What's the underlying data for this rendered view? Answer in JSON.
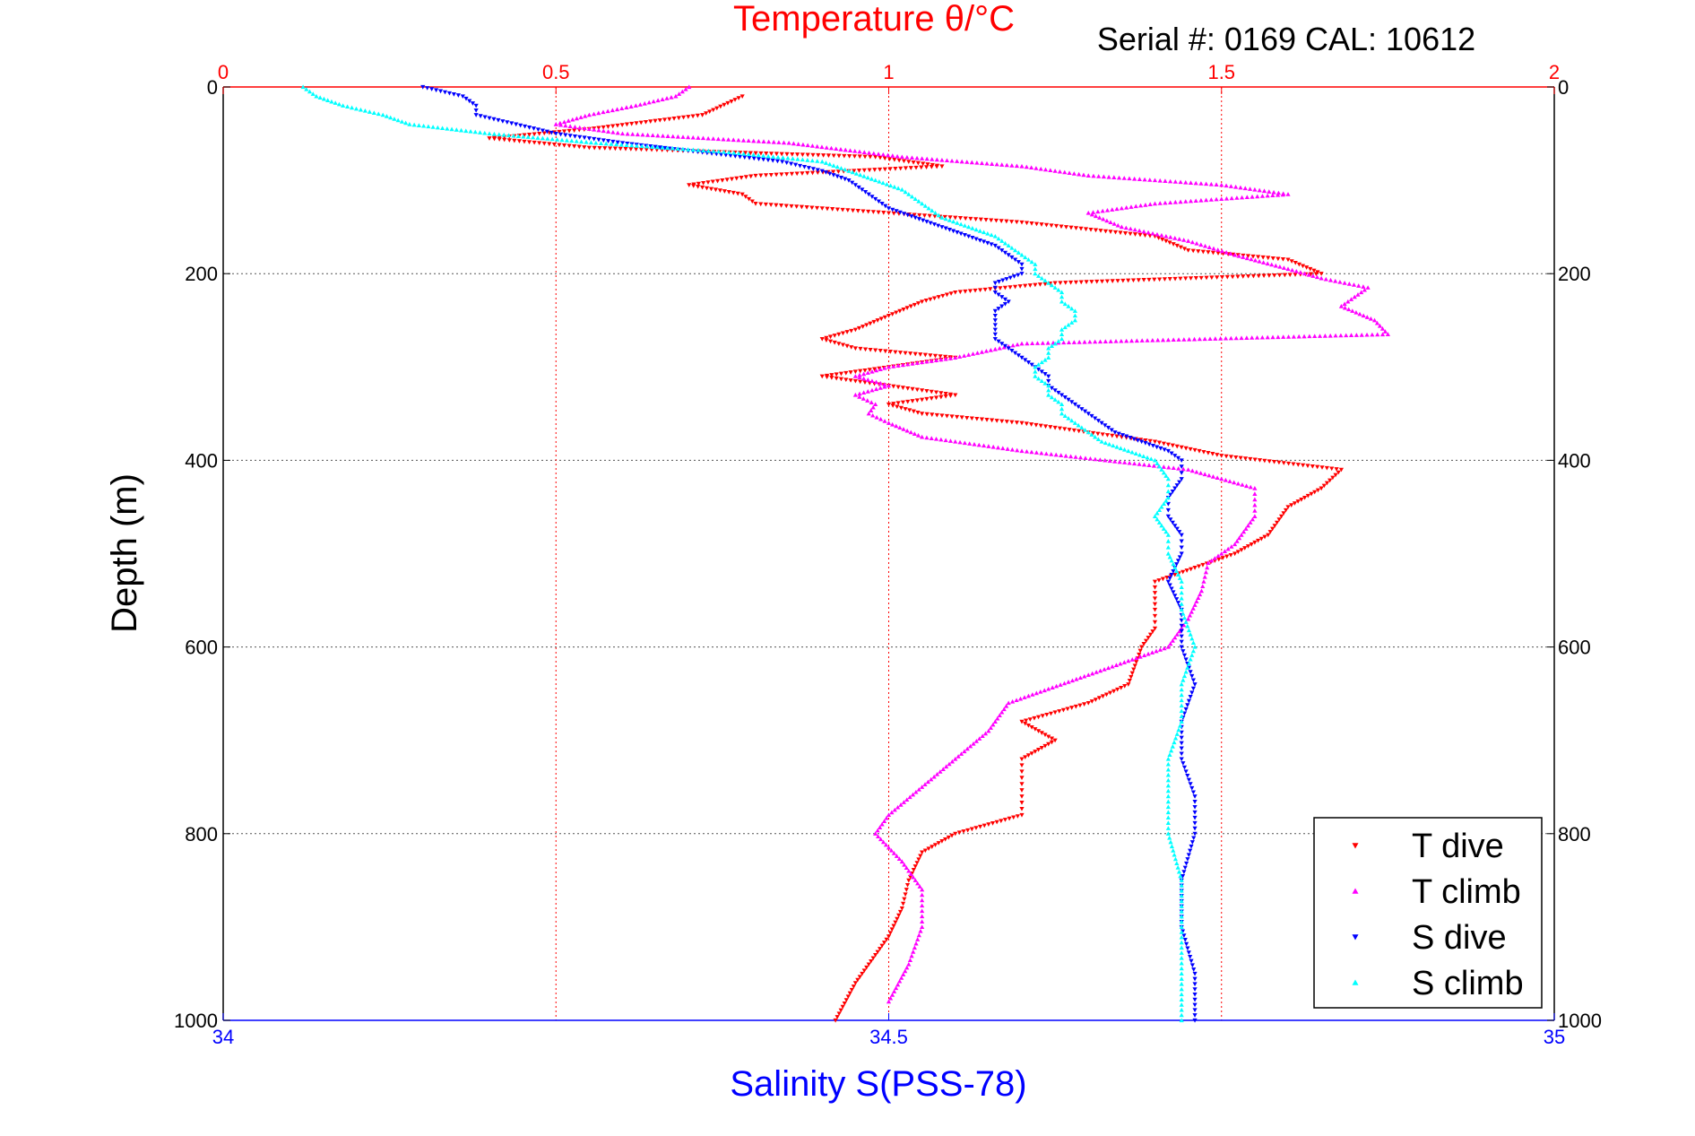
{
  "chart_data": {
    "type": "scatter",
    "title": "Temperature θ/°C",
    "subtitle": "Serial #: 0169 CAL: 10612",
    "ylabel": "Depth (m)",
    "xlabel": "Salinity S(PSS-78)",
    "grid": true,
    "legend_position": "bottom-right",
    "y_axis": {
      "range": [
        0,
        1000
      ],
      "ticks": [
        0,
        200,
        400,
        600,
        800,
        1000
      ],
      "inverted": true
    },
    "x_axis_top": {
      "quantity": "temperature",
      "range": [
        0,
        2
      ],
      "ticks": [
        0,
        0.5,
        1,
        1.5,
        2
      ],
      "tick_labels": [
        "0",
        "0.5",
        "1",
        "1.5",
        "2"
      ],
      "color": "#ff0000"
    },
    "x_axis_bottom": {
      "quantity": "salinity",
      "range": [
        34,
        35
      ],
      "ticks": [
        34,
        34.5,
        35
      ],
      "tick_labels": [
        "34",
        "34.5",
        "35"
      ],
      "color": "#0000ff"
    },
    "colors": {
      "temperature": "#ff0000",
      "salinity": "#0000ff",
      "frame": "#000000",
      "grid": "#555555"
    },
    "series": [
      {
        "name": "T dive",
        "axis": "temperature",
        "color": "#ff0000",
        "marker": "triangle-down",
        "depth": [
          10,
          30,
          45,
          55,
          65,
          75,
          85,
          95,
          105,
          115,
          125,
          135,
          145,
          160,
          175,
          185,
          200,
          210,
          220,
          230,
          245,
          260,
          270,
          280,
          290,
          300,
          310,
          320,
          330,
          340,
          350,
          360,
          380,
          395,
          410,
          430,
          450,
          480,
          500,
          530,
          560,
          580,
          600,
          620,
          640,
          660,
          680,
          700,
          720,
          740,
          760,
          780,
          800,
          820,
          850,
          880,
          910,
          930,
          960,
          1000
        ],
        "values": [
          0.78,
          0.72,
          0.55,
          0.4,
          0.55,
          0.98,
          1.08,
          0.8,
          0.7,
          0.78,
          0.8,
          1.0,
          1.2,
          1.4,
          1.45,
          1.6,
          1.65,
          1.25,
          1.1,
          1.05,
          1.0,
          0.95,
          0.9,
          0.95,
          1.1,
          1.0,
          0.9,
          1.0,
          1.1,
          1.0,
          1.05,
          1.2,
          1.4,
          1.5,
          1.68,
          1.65,
          1.6,
          1.57,
          1.52,
          1.4,
          1.4,
          1.4,
          1.38,
          1.37,
          1.36,
          1.3,
          1.2,
          1.25,
          1.2,
          1.2,
          1.2,
          1.2,
          1.1,
          1.05,
          1.03,
          1.02,
          1.0,
          0.98,
          0.95,
          0.92
        ]
      },
      {
        "name": "T climb",
        "axis": "temperature",
        "color": "#ff00ff",
        "marker": "triangle-up",
        "depth": [
          0,
          10,
          20,
          30,
          40,
          50,
          60,
          75,
          85,
          95,
          105,
          115,
          125,
          135,
          150,
          165,
          180,
          195,
          205,
          215,
          225,
          235,
          250,
          265,
          275,
          290,
          300,
          310,
          320,
          330,
          340,
          350,
          360,
          375,
          390,
          410,
          430,
          460,
          490,
          510,
          540,
          570,
          600,
          630,
          660,
          690,
          720,
          750,
          780,
          800,
          830,
          860,
          900,
          940,
          980
        ],
        "values": [
          0.7,
          0.68,
          0.62,
          0.55,
          0.5,
          0.6,
          0.85,
          1.02,
          1.2,
          1.3,
          1.5,
          1.6,
          1.4,
          1.3,
          1.35,
          1.45,
          1.52,
          1.6,
          1.65,
          1.72,
          1.7,
          1.68,
          1.73,
          1.75,
          1.2,
          1.1,
          1.0,
          0.95,
          1.0,
          0.95,
          0.98,
          0.97,
          1.0,
          1.05,
          1.2,
          1.45,
          1.55,
          1.55,
          1.52,
          1.48,
          1.47,
          1.45,
          1.42,
          1.3,
          1.18,
          1.15,
          1.1,
          1.05,
          1.0,
          0.98,
          1.02,
          1.05,
          1.05,
          1.03,
          1.0
        ]
      },
      {
        "name": "S dive",
        "axis": "salinity",
        "color": "#0000ff",
        "marker": "triangle-down",
        "depth": [
          0,
          10,
          20,
          30,
          40,
          50,
          60,
          70,
          80,
          90,
          100,
          110,
          120,
          130,
          140,
          150,
          160,
          170,
          180,
          190,
          200,
          210,
          220,
          230,
          240,
          250,
          260,
          270,
          280,
          290,
          300,
          310,
          320,
          330,
          340,
          350,
          360,
          370,
          380,
          390,
          400,
          420,
          440,
          460,
          480,
          500,
          530,
          560,
          600,
          640,
          680,
          720,
          760,
          800,
          850,
          900,
          950,
          1000
        ],
        "values": [
          34.15,
          34.18,
          34.19,
          34.19,
          34.22,
          34.25,
          34.3,
          34.36,
          34.42,
          34.45,
          34.47,
          34.48,
          34.49,
          34.5,
          34.52,
          34.54,
          34.56,
          34.58,
          34.59,
          34.6,
          34.6,
          34.58,
          34.58,
          34.59,
          34.58,
          34.58,
          34.58,
          34.58,
          34.59,
          34.6,
          34.61,
          34.62,
          34.62,
          34.63,
          34.64,
          34.65,
          34.66,
          34.67,
          34.69,
          34.71,
          34.72,
          34.72,
          34.71,
          34.71,
          34.72,
          34.72,
          34.71,
          34.72,
          34.72,
          34.73,
          34.72,
          34.72,
          34.73,
          34.73,
          34.72,
          34.72,
          34.73,
          34.73
        ]
      },
      {
        "name": "S climb",
        "axis": "salinity",
        "color": "#00ffff",
        "marker": "triangle-up",
        "depth": [
          0,
          10,
          20,
          30,
          40,
          50,
          60,
          70,
          80,
          90,
          100,
          110,
          120,
          130,
          140,
          150,
          160,
          170,
          180,
          190,
          200,
          210,
          220,
          230,
          240,
          250,
          260,
          270,
          280,
          290,
          300,
          310,
          320,
          330,
          340,
          350,
          360,
          370,
          380,
          390,
          400,
          420,
          440,
          460,
          480,
          500,
          530,
          560,
          600,
          640,
          680,
          720,
          760,
          800,
          850,
          900,
          950,
          1000
        ],
        "values": [
          34.06,
          34.07,
          34.09,
          34.12,
          34.14,
          34.2,
          34.28,
          34.38,
          34.45,
          34.47,
          34.49,
          34.51,
          34.52,
          34.53,
          34.54,
          34.56,
          34.58,
          34.59,
          34.6,
          34.61,
          34.61,
          34.62,
          34.63,
          34.63,
          34.64,
          34.64,
          34.63,
          34.63,
          34.62,
          34.62,
          34.61,
          34.61,
          34.62,
          34.62,
          34.63,
          34.63,
          34.64,
          34.65,
          34.66,
          34.68,
          34.7,
          34.71,
          34.71,
          34.7,
          34.71,
          34.71,
          34.72,
          34.72,
          34.73,
          34.72,
          34.72,
          34.71,
          34.71,
          34.71,
          34.72,
          34.72,
          34.72,
          34.72
        ]
      }
    ]
  }
}
